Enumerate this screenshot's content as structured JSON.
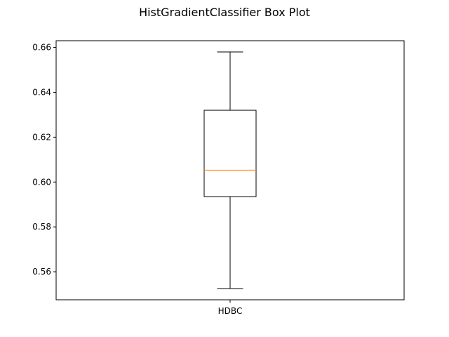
{
  "chart_data": {
    "type": "box",
    "title": "HistGradientClassifier Box Plot",
    "xlabel": "",
    "ylabel": "",
    "categories": [
      "HDBC"
    ],
    "boxes": [
      {
        "name": "HDBC",
        "whisker_low": 0.5525,
        "q1": 0.5935,
        "median": 0.6053,
        "q3": 0.632,
        "whisker_high": 0.658
      }
    ],
    "ylim": [
      0.5475,
      0.663
    ],
    "yticks": [
      0.56,
      0.58,
      0.6,
      0.62,
      0.64,
      0.66
    ],
    "ytick_labels": [
      "0.56",
      "0.58",
      "0.60",
      "0.62",
      "0.64",
      "0.66"
    ],
    "grid": false,
    "colors": {
      "box": "#000000",
      "median": "#ff7f0e",
      "whisker": "#000000"
    }
  }
}
